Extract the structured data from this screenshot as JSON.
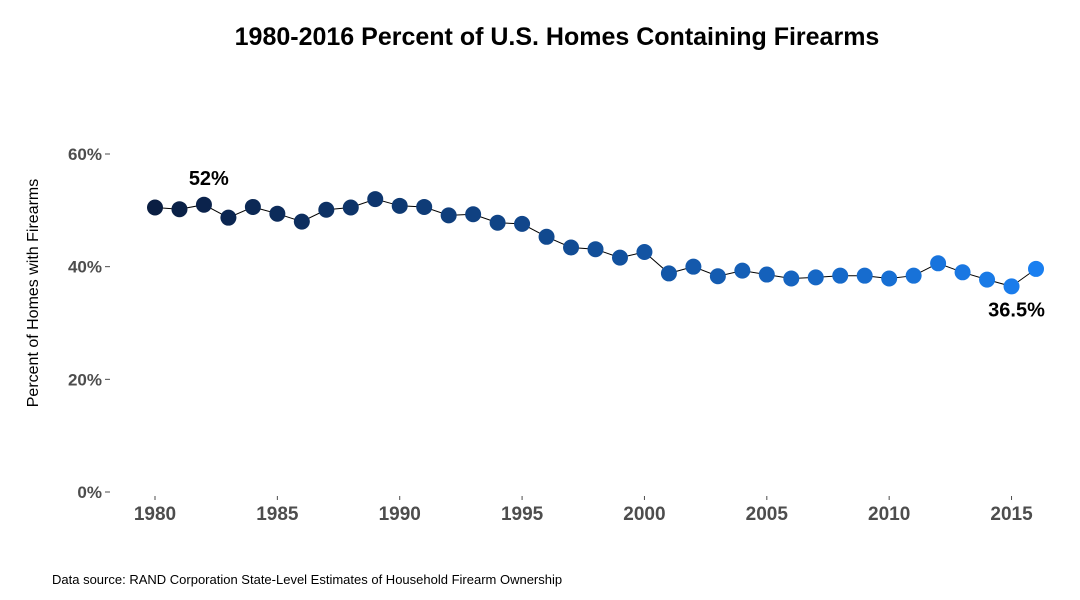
{
  "chart_data": {
    "type": "scatter",
    "title": "1980-2016 Percent of U.S. Homes Containing Firearms",
    "xlabel": "",
    "ylabel": "Percent of Homes with Firearms",
    "ylim": [
      0,
      60
    ],
    "xlim": [
      1980,
      2016
    ],
    "y_ticks": [
      "0%",
      "20%",
      "40%",
      "60%"
    ],
    "x_ticks": [
      "1980",
      "1985",
      "1990",
      "1995",
      "2000",
      "2005",
      "2010",
      "2015"
    ],
    "grid": false,
    "legend": "none",
    "connected_line": true,
    "color_scale": {
      "low_year_color": "#0a1e42",
      "high_year_color": "#1a7ff0"
    },
    "x": [
      1980,
      1981,
      1982,
      1983,
      1984,
      1985,
      1986,
      1987,
      1988,
      1989,
      1990,
      1991,
      1992,
      1993,
      1994,
      1995,
      1996,
      1997,
      1998,
      1999,
      2000,
      2001,
      2002,
      2003,
      2004,
      2005,
      2006,
      2007,
      2008,
      2009,
      2010,
      2011,
      2012,
      2013,
      2014,
      2015,
      2016
    ],
    "y": [
      50.5,
      50.2,
      51.0,
      48.7,
      50.6,
      49.4,
      48.0,
      50.1,
      50.5,
      52.0,
      50.8,
      50.6,
      49.1,
      49.3,
      47.8,
      47.6,
      45.3,
      43.4,
      43.1,
      41.6,
      42.6,
      38.8,
      40.0,
      38.3,
      39.3,
      38.6,
      37.9,
      38.1,
      38.4,
      38.4,
      37.9,
      38.4,
      40.6,
      39.0,
      37.7,
      36.5,
      39.6
    ],
    "annotations": [
      {
        "text": "52%",
        "x": 1989,
        "y": 52.0
      },
      {
        "text": "36.5%",
        "x": 2015,
        "y": 36.5
      }
    ],
    "source": "Data source: RAND Corporation State-Level Estimates of Household Firearm Ownership"
  }
}
